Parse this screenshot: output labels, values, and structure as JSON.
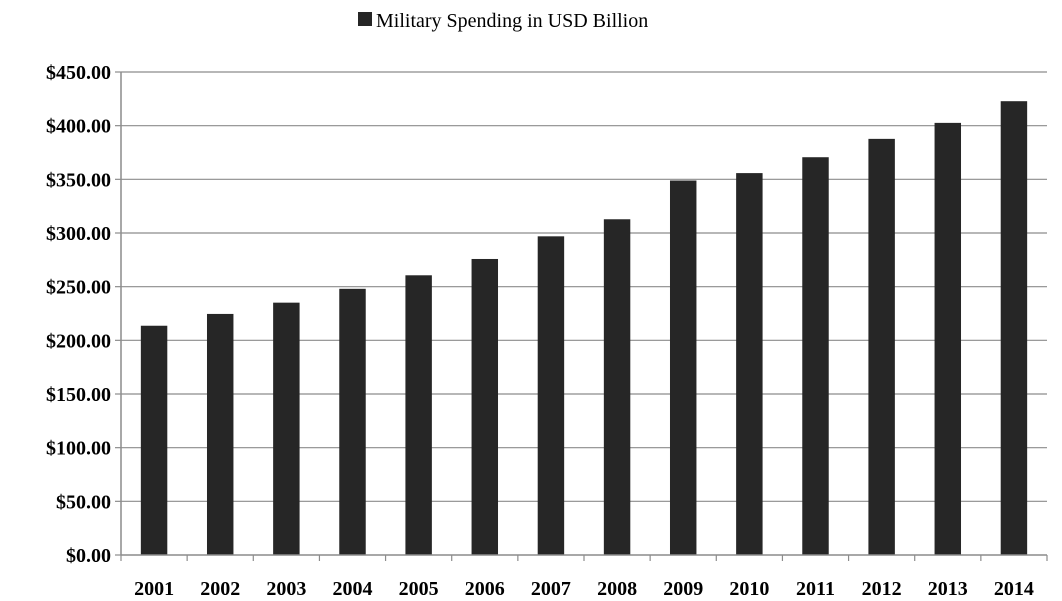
{
  "chart_data": {
    "type": "bar",
    "categories": [
      "2001",
      "2002",
      "2003",
      "2004",
      "2005",
      "2006",
      "2007",
      "2008",
      "2009",
      "2010",
      "2011",
      "2012",
      "2013",
      "2014"
    ],
    "series": [
      {
        "name": "Military Spending in USD Billion",
        "color": "#262626",
        "values": [
          213.6,
          224.6,
          235.1,
          248.0,
          260.6,
          275.8,
          296.9,
          312.8,
          348.9,
          355.8,
          370.6,
          387.7,
          402.6,
          422.8
        ]
      }
    ],
    "ylim": [
      0,
      450
    ],
    "y_ticks": [
      "$0.00",
      "$50.00",
      "$100.00",
      "$150.00",
      "$200.00",
      "$250.00",
      "$300.00",
      "$350.00",
      "$400.00",
      "$450.00"
    ],
    "y_tick_values": [
      0,
      50,
      100,
      150,
      200,
      250,
      300,
      350,
      400,
      450
    ],
    "grid": true,
    "legend_position": "top-center"
  }
}
